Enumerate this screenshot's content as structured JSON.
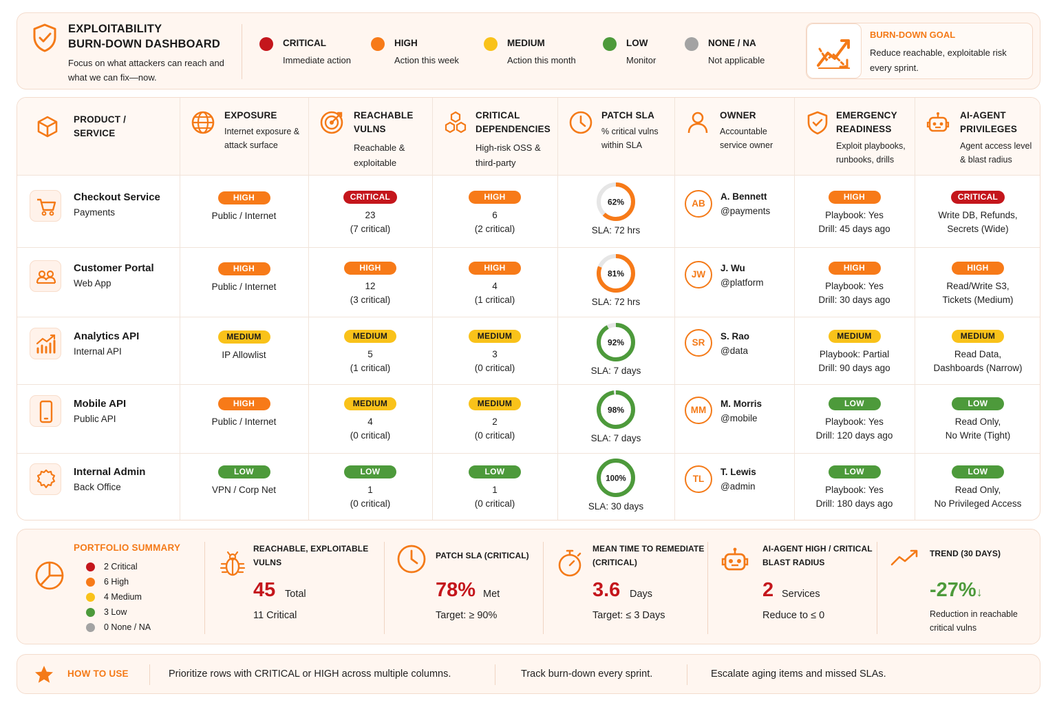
{
  "header": {
    "title_line1": "EXPLOITABILITY",
    "title_line2": "BURN-DOWN DASHBOARD",
    "subtitle": "Focus on what attackers can reach and what we can fix—now.",
    "legend": [
      {
        "label": "CRITICAL",
        "desc": "Immediate action",
        "color": "#c4161c"
      },
      {
        "label": "HIGH",
        "desc": "Action this week",
        "color": "#f77a18"
      },
      {
        "label": "MEDIUM",
        "desc": "Action this month",
        "color": "#f9c21a"
      },
      {
        "label": "LOW",
        "desc": "Monitor",
        "color": "#4d9a3b"
      },
      {
        "label": "NONE / NA",
        "desc": "Not applicable",
        "color": "#a3a3a3"
      }
    ],
    "goal": {
      "title": "BURN-DOWN GOAL",
      "text": "Reduce reachable, exploitable risk every sprint.",
      "icon": "trend-chart-icon"
    }
  },
  "columns": [
    {
      "title": "PRODUCT / SERVICE",
      "sub": "",
      "icon": "cube-icon"
    },
    {
      "title": "EXPOSURE",
      "sub": "Internet exposure & attack surface",
      "icon": "globe-icon"
    },
    {
      "title": "REACHABLE VULNS",
      "sub": "Reachable & exploitable",
      "icon": "target-icon"
    },
    {
      "title": "CRITICAL DEPENDENCIES",
      "sub": "High-risk OSS & third-party",
      "icon": "hexagons-icon"
    },
    {
      "title": "PATCH SLA",
      "sub": "% critical vulns within SLA",
      "icon": "clock-icon"
    },
    {
      "title": "OWNER",
      "sub": "Accountable service owner",
      "icon": "person-icon"
    },
    {
      "title": "EMERGENCY READINESS",
      "sub": "Exploit playbooks, runbooks, drills",
      "icon": "shield-check-icon"
    },
    {
      "title": "AI-AGENT PRIVILEGES",
      "sub": "Agent access level & blast radius",
      "icon": "robot-icon"
    }
  ],
  "rows": [
    {
      "name": "Checkout Service",
      "sub": "Payments",
      "icon": "cart-icon",
      "exposure": {
        "level": "HIGH",
        "text1": "Public / Internet"
      },
      "vulns": {
        "level": "CRITICAL",
        "text1": "23",
        "text2": "(7 critical)"
      },
      "deps": {
        "level": "HIGH",
        "text1": "6",
        "text2": "(2 critical)"
      },
      "sla": {
        "percent": 62,
        "label": "62%",
        "text": "SLA: 72 hrs",
        "color": "#f77a18"
      },
      "owner": {
        "initials": "AB",
        "name": "A. Bennett",
        "handle": "@payments"
      },
      "readiness": {
        "level": "HIGH",
        "text1": "Playbook: Yes",
        "text2": "Drill: 45 days ago"
      },
      "agent": {
        "level": "CRITICAL",
        "text1": "Write DB, Refunds,",
        "text2": "Secrets (Wide)"
      }
    },
    {
      "name": "Customer Portal",
      "sub": "Web App",
      "icon": "users-icon",
      "exposure": {
        "level": "HIGH",
        "text1": "Public / Internet"
      },
      "vulns": {
        "level": "HIGH",
        "text1": "12",
        "text2": "(3 critical)"
      },
      "deps": {
        "level": "HIGH",
        "text1": "4",
        "text2": "(1 critical)"
      },
      "sla": {
        "percent": 81,
        "label": "81%",
        "text": "SLA: 72 hrs",
        "color": "#f77a18"
      },
      "owner": {
        "initials": "JW",
        "name": "J. Wu",
        "handle": "@platform"
      },
      "readiness": {
        "level": "HIGH",
        "text1": "Playbook: Yes",
        "text2": "Drill: 30 days ago"
      },
      "agent": {
        "level": "HIGH",
        "text1": "Read/Write S3,",
        "text2": "Tickets (Medium)"
      }
    },
    {
      "name": "Analytics API",
      "sub": "Internal API",
      "icon": "bar-chart-icon",
      "exposure": {
        "level": "MEDIUM",
        "text1": "IP Allowlist"
      },
      "vulns": {
        "level": "MEDIUM",
        "text1": "5",
        "text2": "(1 critical)"
      },
      "deps": {
        "level": "MEDIUM",
        "text1": "3",
        "text2": "(0 critical)"
      },
      "sla": {
        "percent": 92,
        "label": "92%",
        "text": "SLA: 7 days",
        "color": "#4d9a3b"
      },
      "owner": {
        "initials": "SR",
        "name": "S. Rao",
        "handle": "@data"
      },
      "readiness": {
        "level": "MEDIUM",
        "text1": "Playbook: Partial",
        "text2": "Drill: 90 days ago"
      },
      "agent": {
        "level": "MEDIUM",
        "text1": "Read Data,",
        "text2": "Dashboards (Narrow)"
      }
    },
    {
      "name": "Mobile API",
      "sub": "Public API",
      "icon": "phone-icon",
      "exposure": {
        "level": "HIGH",
        "text1": "Public / Internet"
      },
      "vulns": {
        "level": "MEDIUM",
        "text1": "4",
        "text2": "(0 critical)"
      },
      "deps": {
        "level": "MEDIUM",
        "text1": "2",
        "text2": "(0 critical)"
      },
      "sla": {
        "percent": 98,
        "label": "98%",
        "text": "SLA: 7 days",
        "color": "#4d9a3b"
      },
      "owner": {
        "initials": "MM",
        "name": "M. Morris",
        "handle": "@mobile"
      },
      "readiness": {
        "level": "LOW",
        "text1": "Playbook: Yes",
        "text2": "Drill: 120 days ago"
      },
      "agent": {
        "level": "LOW",
        "text1": "Read Only,",
        "text2": "No Write (Tight)"
      }
    },
    {
      "name": "Internal Admin",
      "sub": "Back Office",
      "icon": "gear-icon",
      "exposure": {
        "level": "LOW",
        "text1": "VPN / Corp Net"
      },
      "vulns": {
        "level": "LOW",
        "text1": "1",
        "text2": "(0 critical)"
      },
      "deps": {
        "level": "LOW",
        "text1": "1",
        "text2": "(0 critical)"
      },
      "sla": {
        "percent": 100,
        "label": "100%",
        "text": "SLA: 30 days",
        "color": "#4d9a3b"
      },
      "owner": {
        "initials": "TL",
        "name": "T. Lewis",
        "handle": "@admin"
      },
      "readiness": {
        "level": "LOW",
        "text1": "Playbook: Yes",
        "text2": "Drill: 180 days ago"
      },
      "agent": {
        "level": "LOW",
        "text1": "Read Only,",
        "text2": "No Privileged Access"
      }
    }
  ],
  "summary": {
    "title": "PORTFOLIO SUMMARY",
    "legend": [
      {
        "text": "2 Critical",
        "color": "#c4161c"
      },
      {
        "text": "6 High",
        "color": "#f77a18"
      },
      {
        "text": "4 Medium",
        "color": "#f9c21a"
      },
      {
        "text": "3 Low",
        "color": "#4d9a3b"
      },
      {
        "text": "0 None / NA",
        "color": "#a3a3a3"
      }
    ],
    "kpis": [
      {
        "title1": "REACHABLE, EXPLOITABLE",
        "title2": "VULNS",
        "value": "45",
        "unit": "Total",
        "sub": "11 Critical",
        "icon": "bug-icon"
      },
      {
        "title1": "PATCH SLA (CRITICAL)",
        "title2": "",
        "value": "78%",
        "unit": "Met",
        "sub": "Target: ≥ 90%",
        "icon": "clock-icon"
      },
      {
        "title1": "MEAN TIME TO REMEDIATE",
        "title2": "(CRITICAL)",
        "value": "3.6",
        "unit": "Days",
        "sub": "Target: ≤ 3 Days",
        "icon": "stopwatch-icon"
      },
      {
        "title1": "AI-AGENT HIGH / CRITICAL",
        "title2": "BLAST RADIUS",
        "value": "2",
        "unit": "Services",
        "sub": "Reduce to ≤ 0",
        "icon": "robot-icon"
      }
    ],
    "trend": {
      "title": "TREND (30 DAYS)",
      "value": "-27%",
      "arrow": "↓",
      "text1": "Reduction in reachable",
      "text2": "critical vulns",
      "color": "#4d9a3b"
    }
  },
  "howto": {
    "title": "HOW TO USE",
    "items": [
      "Prioritize rows with CRITICAL or HIGH across multiple columns.",
      "Track burn-down every sprint.",
      "Escalate aging items and missed SLAs."
    ]
  }
}
